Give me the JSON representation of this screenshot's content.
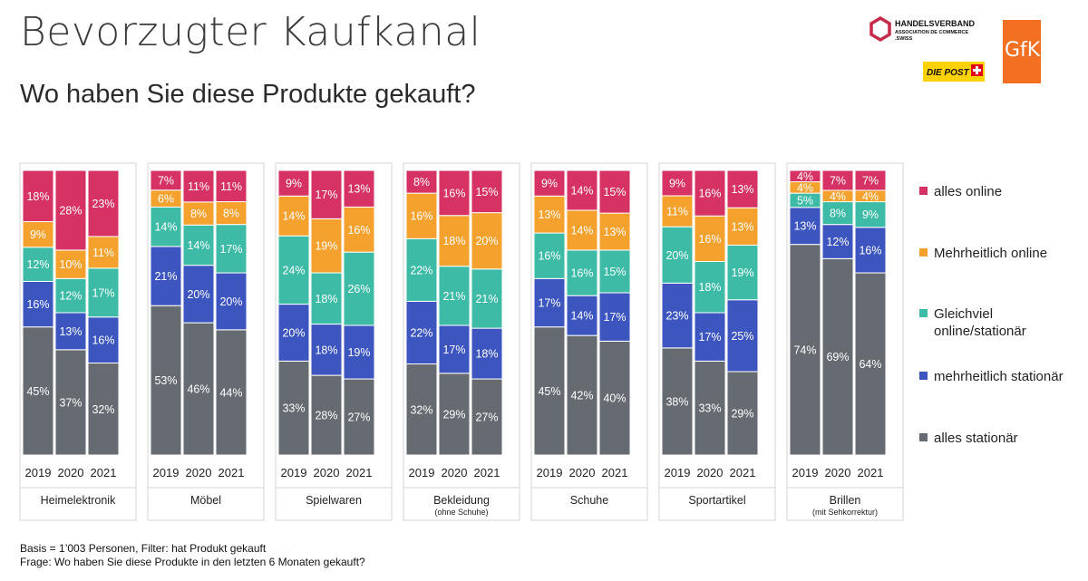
{
  "header": {
    "title": "Bevorzugter Kaufkanal",
    "subtitle": "Wo haben Sie diese Produkte gekauft?"
  },
  "logos": {
    "handelsverband_line1": "HANDELSVERBAND",
    "handelsverband_line2": "ASSOCIATION DE COMMERCE",
    "handelsverband_line3": ".SWISS",
    "post": "DIE POST",
    "gfk": "GfK"
  },
  "footnote": {
    "line1": "Basis = 1’003 Personen, Filter: hat Produkt gekauft",
    "line2": "Frage: Wo haben Sie diese Produkte in den letzten 6 Monaten gekauft?"
  },
  "chart_data": {
    "type": "bar",
    "stacked": true,
    "normalized_percent": true,
    "years": [
      "2019",
      "2020",
      "2021"
    ],
    "series_order_bottom_to_top": [
      "alles stationär",
      "mehrheitlich stationär",
      "Gleichviel online/stationär",
      "Mehrheitlich online",
      "alles online"
    ],
    "series": [
      {
        "name": "alles online",
        "color": "#d63264"
      },
      {
        "name": "Mehrheitlich online",
        "color": "#f5a12e"
      },
      {
        "name": "Gleichviel online/stationär",
        "legend_lines": [
          "Gleichviel",
          "online/stationär"
        ],
        "color": "#3dbba6"
      },
      {
        "name": "mehrheitlich stationär",
        "color": "#3d55bf"
      },
      {
        "name": "alles stationär",
        "color": "#656b71"
      }
    ],
    "groups": [
      {
        "name": "Heimelektronik",
        "sub": "",
        "values": [
          [
            45,
            16,
            12,
            9,
            18
          ],
          [
            37,
            13,
            12,
            10,
            28
          ],
          [
            32,
            16,
            17,
            11,
            23
          ]
        ]
      },
      {
        "name": "Möbel",
        "sub": "",
        "values": [
          [
            53,
            21,
            14,
            6,
            7
          ],
          [
            46,
            20,
            14,
            8,
            11
          ],
          [
            44,
            20,
            17,
            8,
            11
          ]
        ]
      },
      {
        "name": "Spielwaren",
        "sub": "",
        "values": [
          [
            33,
            20,
            24,
            14,
            9
          ],
          [
            28,
            18,
            18,
            19,
            17
          ],
          [
            27,
            19,
            26,
            16,
            13
          ]
        ]
      },
      {
        "name": "Bekleidung",
        "sub": "(ohne Schuhe)",
        "values": [
          [
            32,
            22,
            22,
            16,
            8
          ],
          [
            29,
            17,
            21,
            18,
            16
          ],
          [
            27,
            18,
            21,
            20,
            15
          ]
        ]
      },
      {
        "name": "Schuhe",
        "sub": "",
        "values": [
          [
            45,
            17,
            16,
            13,
            9
          ],
          [
            42,
            14,
            16,
            14,
            14
          ],
          [
            40,
            17,
            15,
            13,
            15
          ]
        ]
      },
      {
        "name": "Sportartikel",
        "sub": "",
        "values": [
          [
            38,
            23,
            20,
            11,
            9
          ],
          [
            33,
            17,
            18,
            16,
            16
          ],
          [
            29,
            25,
            19,
            13,
            13
          ]
        ]
      },
      {
        "name": "Brillen",
        "sub": "(mit Sehkorrektur)",
        "values": [
          [
            74,
            13,
            5,
            4,
            4
          ],
          [
            69,
            12,
            8,
            4,
            7
          ],
          [
            64,
            16,
            9,
            4,
            7
          ]
        ]
      }
    ],
    "value_suffix": "%",
    "ylim": [
      0,
      100
    ],
    "legend_position": "right"
  }
}
